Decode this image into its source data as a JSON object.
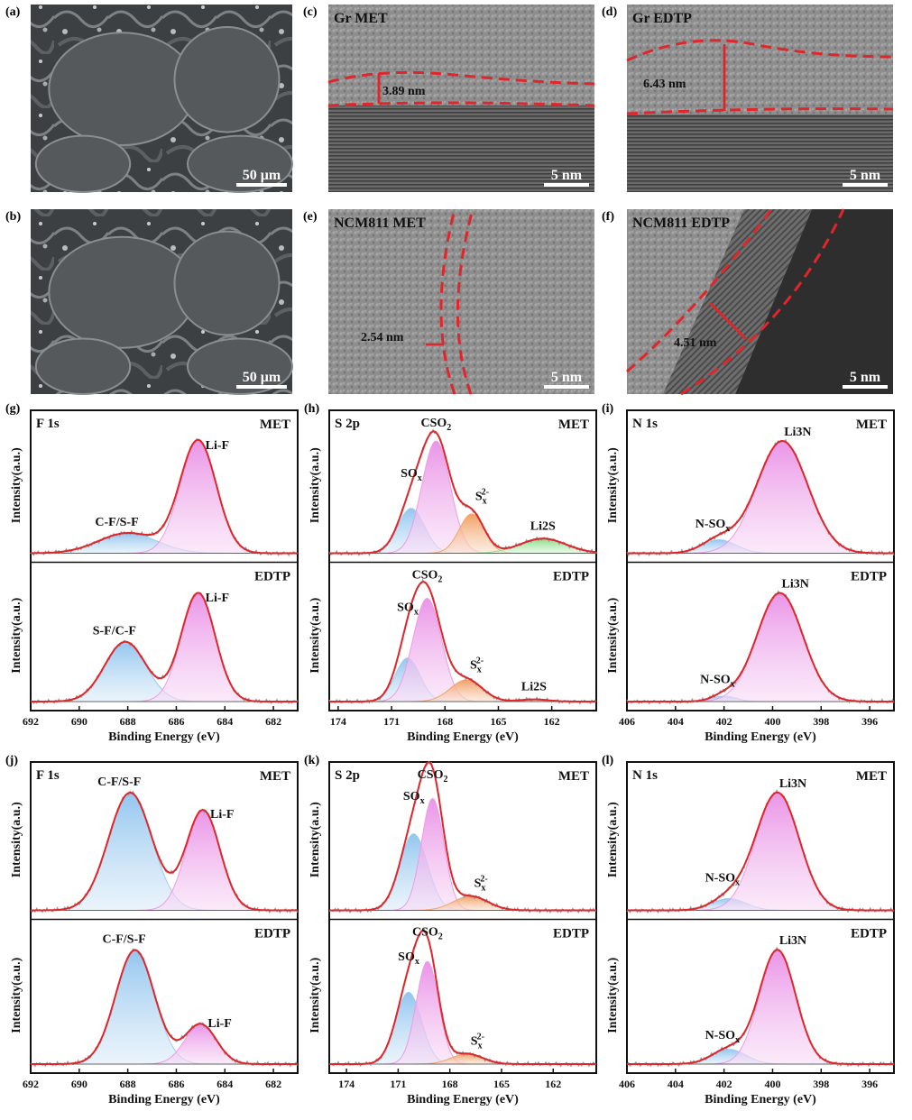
{
  "micrographs": [
    {
      "id": "a",
      "letter": "(a)",
      "label": "",
      "scale": "50 μm",
      "type": "sem",
      "measurement": "",
      "style": "none"
    },
    {
      "id": "b",
      "letter": "(b)",
      "label": "",
      "scale": "50 μm",
      "type": "sem",
      "measurement": "",
      "style": "none"
    },
    {
      "id": "c",
      "letter": "(c)",
      "label": "Gr MET",
      "scale": "5 nm",
      "type": "tem",
      "measurement": "3.89 nm",
      "style": "c"
    },
    {
      "id": "d",
      "letter": "(d)",
      "label": "Gr EDTP",
      "scale": "5 nm",
      "type": "tem",
      "measurement": "6.43 nm",
      "style": "d"
    },
    {
      "id": "e",
      "letter": "(e)",
      "label": "NCM811 MET",
      "scale": "5 nm",
      "type": "tem",
      "measurement": "2.54 nm",
      "style": "e"
    },
    {
      "id": "f",
      "letter": "(f)",
      "label": "NCM811 EDTP",
      "scale": "5 nm",
      "type": "tem",
      "measurement": "4.51 nm",
      "style": "f"
    }
  ],
  "colors": {
    "envelope": "#e0262a",
    "blue": "#9ecbef",
    "pink": "#ee9be6",
    "orange": "#f2a56b",
    "green": "#8fe08f",
    "raw": "#9a9a9a",
    "axis": "#111111"
  },
  "chart_data": [
    {
      "id": "g",
      "letter": "(g)",
      "element": "F 1s",
      "type": "line",
      "xlabel": "Binding Energy (eV)",
      "ylabel": "Intensity(a.u.)",
      "xlim": [
        692,
        681
      ],
      "xticks": [
        692,
        690,
        688,
        686,
        684,
        682
      ],
      "subplots": [
        {
          "tag": "MET",
          "peaks": [
            {
              "name": "C-F/S-F",
              "center": 688.0,
              "height": 0.18,
              "width": 1.2,
              "color": "blue"
            },
            {
              "name": "Li-F",
              "center": 685.1,
              "height": 1.0,
              "width": 0.75,
              "color": "pink"
            }
          ]
        },
        {
          "tag": "EDTP",
          "peaks": [
            {
              "name": "S-F/C-F",
              "center": 688.1,
              "height": 0.55,
              "width": 0.85,
              "color": "blue"
            },
            {
              "name": "Li-F",
              "center": 685.1,
              "height": 1.0,
              "width": 0.7,
              "color": "pink"
            }
          ]
        }
      ]
    },
    {
      "id": "h",
      "letter": "(h)",
      "element": "S 2p",
      "type": "line",
      "xlabel": "Binding Energy (eV)",
      "ylabel": "Intensity(a.u.)",
      "xlim": [
        174.5,
        159.5
      ],
      "xticks": [
        174,
        171,
        168,
        165,
        162
      ],
      "subplots": [
        {
          "tag": "MET",
          "peaks": [
            {
              "name": "SOx",
              "center": 169.9,
              "height": 0.4,
              "width": 0.75,
              "color": "blue"
            },
            {
              "name": "CSO2",
              "center": 168.5,
              "height": 1.0,
              "width": 0.8,
              "color": "pink"
            },
            {
              "name": "Sx2-",
              "center": 166.5,
              "height": 0.35,
              "width": 0.7,
              "color": "orange"
            },
            {
              "name": "Li2S",
              "center": 162.5,
              "height": 0.13,
              "width": 1.3,
              "color": "green"
            }
          ]
        },
        {
          "tag": "EDTP",
          "peaks": [
            {
              "name": "SOx",
              "center": 170.1,
              "height": 0.4,
              "width": 0.7,
              "color": "blue"
            },
            {
              "name": "CSO2",
              "center": 169.0,
              "height": 0.95,
              "width": 0.8,
              "color": "pink"
            },
            {
              "name": "Sx2-",
              "center": 166.8,
              "height": 0.2,
              "width": 0.9,
              "color": "orange"
            },
            {
              "name": "Li2S",
              "center": 163.0,
              "height": 0.02,
              "width": 0.8,
              "color": "green"
            }
          ]
        }
      ]
    },
    {
      "id": "i",
      "letter": "(i)",
      "element": "N 1s",
      "type": "line",
      "xlabel": "Binding Energy (eV)",
      "ylabel": "Intensity(a.u.)",
      "xlim": [
        406,
        395
      ],
      "xticks": [
        406,
        404,
        402,
        400,
        398,
        396
      ],
      "subplots": [
        {
          "tag": "MET",
          "peaks": [
            {
              "name": "N-SOx",
              "center": 402.2,
              "height": 0.12,
              "width": 0.7,
              "color": "blue"
            },
            {
              "name": "Li3N",
              "center": 399.6,
              "height": 1.0,
              "width": 1.05,
              "color": "pink"
            }
          ]
        },
        {
          "tag": "EDTP",
          "peaks": [
            {
              "name": "N-SOx",
              "center": 402.0,
              "height": 0.05,
              "width": 0.5,
              "color": "blue"
            },
            {
              "name": "Li3N",
              "center": 399.7,
              "height": 1.0,
              "width": 0.95,
              "color": "pink"
            }
          ]
        }
      ]
    },
    {
      "id": "j",
      "letter": "(j)",
      "element": "F 1s",
      "type": "line",
      "xlabel": "Binding Energy (eV)",
      "ylabel": "Intensity(a.u.)",
      "xlim": [
        692,
        681
      ],
      "xticks": [
        692,
        690,
        688,
        686,
        684,
        682
      ],
      "subplots": [
        {
          "tag": "MET",
          "peaks": [
            {
              "name": "C-F/S-F",
              "center": 687.9,
              "height": 1.0,
              "width": 0.9,
              "color": "blue"
            },
            {
              "name": "Li-F",
              "center": 684.9,
              "height": 0.85,
              "width": 0.7,
              "color": "pink"
            }
          ]
        },
        {
          "tag": "EDTP",
          "peaks": [
            {
              "name": "C-F/S-F",
              "center": 687.7,
              "height": 1.0,
              "width": 0.8,
              "color": "blue"
            },
            {
              "name": "Li-F",
              "center": 685.0,
              "height": 0.35,
              "width": 0.65,
              "color": "pink"
            }
          ]
        }
      ]
    },
    {
      "id": "k",
      "letter": "(k)",
      "element": "S 2p",
      "type": "line",
      "xlabel": "Binding Energy (eV)",
      "ylabel": "Intensity(a.u.)",
      "xlim": [
        175,
        159.5
      ],
      "xticks": [
        174,
        171,
        168,
        165,
        162
      ],
      "subplots": [
        {
          "tag": "MET",
          "peaks": [
            {
              "name": "SOx",
              "center": 170.1,
              "height": 0.65,
              "width": 0.8,
              "color": "blue"
            },
            {
              "name": "CSO2",
              "center": 169.0,
              "height": 0.95,
              "width": 0.65,
              "color": "pink"
            },
            {
              "name": "Sx2-",
              "center": 166.8,
              "height": 0.12,
              "width": 1.0,
              "color": "orange"
            }
          ]
        },
        {
          "tag": "EDTP",
          "peaks": [
            {
              "name": "SOx",
              "center": 170.4,
              "height": 0.63,
              "width": 0.75,
              "color": "blue"
            },
            {
              "name": "CSO2",
              "center": 169.3,
              "height": 0.9,
              "width": 0.65,
              "color": "pink"
            },
            {
              "name": "Sx2-",
              "center": 167.0,
              "height": 0.09,
              "width": 0.9,
              "color": "orange"
            }
          ]
        }
      ]
    },
    {
      "id": "l",
      "letter": "(l)",
      "element": "N 1s",
      "type": "line",
      "xlabel": "Binding Energy (eV)",
      "ylabel": "Intensity(a.u.)",
      "xlim": [
        406,
        395
      ],
      "xticks": [
        406,
        404,
        402,
        400,
        398,
        396
      ],
      "subplots": [
        {
          "tag": "MET",
          "peaks": [
            {
              "name": "N-SOx",
              "center": 401.8,
              "height": 0.1,
              "width": 0.7,
              "color": "blue"
            },
            {
              "name": "Li3N",
              "center": 399.8,
              "height": 1.0,
              "width": 0.9,
              "color": "pink"
            }
          ]
        },
        {
          "tag": "EDTP",
          "peaks": [
            {
              "name": "N-SOx",
              "center": 401.8,
              "height": 0.13,
              "width": 0.7,
              "color": "blue"
            },
            {
              "name": "Li3N",
              "center": 399.8,
              "height": 1.0,
              "width": 0.75,
              "color": "pink"
            }
          ]
        }
      ]
    }
  ]
}
